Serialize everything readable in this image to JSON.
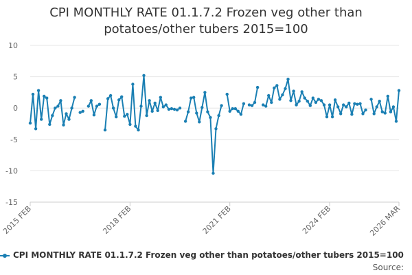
{
  "chart_data": {
    "type": "line",
    "title_lines": [
      "CPI MONTHLY RATE 01.1.7.2 Frozen veg other than",
      "potatoes/other tubers 2015=100"
    ],
    "xlabel": "",
    "ylabel": "",
    "ylim": [
      -15,
      10
    ],
    "yticks": [
      "10",
      "5",
      "0",
      "-5",
      "-10",
      "-15"
    ],
    "ytick_values": [
      10,
      5,
      0,
      -5,
      -10,
      -15
    ],
    "x_start": "2015 FEB",
    "x_end": "2026 MAR",
    "xticks": [
      {
        "label": "2015 FEB",
        "index": 0
      },
      {
        "label": "2018 FEB",
        "index": 36
      },
      {
        "label": "2021 FEB",
        "index": 72
      },
      {
        "label": "2024 FEB",
        "index": 108
      },
      {
        "label": "2026 MAR",
        "index": 133
      }
    ],
    "grid": true,
    "legend_position": "bottom",
    "series": [
      {
        "name": "CPI MONTHLY RATE 01.1.7.2 Frozen veg other than potatoes/other tubers 2015=100",
        "color": "#1a7fb3",
        "values": [
          -2.4,
          2.2,
          -3.3,
          2.8,
          -1.8,
          1.9,
          1.6,
          -2.6,
          -1.2,
          0.0,
          0.3,
          1.2,
          -2.7,
          -0.9,
          -1.8,
          0.0,
          1.7,
          null,
          -0.7,
          -0.5,
          null,
          0.3,
          1.2,
          -1.1,
          0.3,
          0.6,
          null,
          -3.5,
          1.5,
          2.0,
          0.0,
          -1.4,
          1.3,
          1.8,
          -1.3,
          -1.0,
          -2.6,
          3.8,
          -2.9,
          -3.5,
          0.3,
          5.2,
          -1.2,
          1.2,
          -0.5,
          0.8,
          -0.4,
          1.7,
          0.2,
          0.5,
          -0.2,
          -0.1,
          -0.2,
          -0.3,
          0.0,
          null,
          -2.1,
          -0.6,
          1.6,
          1.7,
          -0.8,
          -2.2,
          0.1,
          2.5,
          -0.6,
          -1.5,
          -10.4,
          -3.3,
          -1.2,
          0.4,
          null,
          2.2,
          -0.5,
          -0.1,
          -0.1,
          -0.5,
          -1.0,
          0.7,
          null,
          0.5,
          0.4,
          0.9,
          3.3,
          null,
          0.5,
          0.3,
          2.0,
          0.9,
          3.2,
          3.6,
          1.4,
          2.1,
          3.1,
          4.6,
          1.2,
          2.7,
          0.5,
          1.1,
          2.6,
          1.6,
          1.1,
          0.4,
          1.6,
          0.9,
          1.4,
          1.2,
          0.5,
          -1.4,
          0.5,
          -1.4,
          1.3,
          0.2,
          -0.9,
          0.5,
          0.2,
          0.8,
          -1.0,
          0.7,
          0.6,
          0.7,
          -0.9,
          -0.3,
          null,
          1.4,
          -0.9,
          0.2,
          1.1,
          -0.6,
          -0.8,
          1.9,
          -0.6,
          0.2,
          -2.1,
          2.8
        ]
      }
    ]
  },
  "legend": {
    "label": "CPI MONTHLY RATE 01.1.7.2 Frozen veg other than potatoes/other tubers 2015=100"
  },
  "source_label": "Source:"
}
